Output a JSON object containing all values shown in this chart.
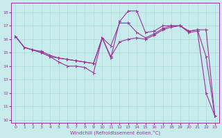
{
  "xlabel": "Windchill (Refroidissement éolien,°C)",
  "xlim": [
    -0.5,
    23.5
  ],
  "ylim": [
    9.8,
    18.7
  ],
  "yticks": [
    10,
    11,
    12,
    13,
    14,
    15,
    16,
    17,
    18
  ],
  "xticks": [
    0,
    1,
    2,
    3,
    4,
    5,
    6,
    7,
    8,
    9,
    10,
    11,
    12,
    13,
    14,
    15,
    16,
    17,
    18,
    19,
    20,
    21,
    22,
    23
  ],
  "bg_color": "#c8ecec",
  "grid_color": "#b0d8d8",
  "line_color": "#993399",
  "line1_x": [
    0,
    1,
    2,
    3,
    4,
    5,
    6,
    7,
    8,
    9,
    10,
    11,
    12,
    13,
    14,
    15,
    16,
    17,
    18,
    19,
    20,
    21,
    22,
    23
  ],
  "line1_y": [
    16.2,
    15.4,
    15.2,
    15.0,
    14.7,
    14.3,
    14.0,
    14.0,
    13.9,
    13.5,
    16.1,
    14.6,
    17.3,
    18.1,
    18.1,
    16.5,
    16.6,
    17.0,
    17.0,
    17.0,
    16.5,
    16.6,
    12.0,
    10.3
  ],
  "line2_x": [
    0,
    1,
    2,
    3,
    4,
    5,
    6,
    7,
    8,
    9,
    10,
    11,
    12,
    13,
    14,
    15,
    16,
    17,
    18,
    19,
    20,
    21,
    22,
    23
  ],
  "line2_y": [
    16.2,
    15.4,
    15.2,
    15.0,
    14.7,
    14.6,
    14.5,
    14.4,
    14.3,
    14.2,
    16.1,
    15.5,
    17.2,
    17.2,
    16.5,
    16.1,
    16.4,
    16.8,
    17.0,
    17.0,
    16.6,
    16.7,
    14.7,
    10.3
  ],
  "line3_x": [
    0,
    1,
    2,
    3,
    4,
    5,
    6,
    7,
    8,
    9,
    10,
    11,
    12,
    13,
    14,
    15,
    16,
    17,
    18,
    19,
    20,
    21,
    22,
    23
  ],
  "line3_y": [
    16.2,
    15.4,
    15.2,
    15.1,
    14.8,
    14.6,
    14.5,
    14.4,
    14.3,
    14.2,
    16.1,
    14.7,
    15.8,
    16.0,
    16.1,
    16.0,
    16.3,
    16.7,
    16.9,
    17.0,
    16.6,
    16.7,
    16.7,
    10.3
  ]
}
